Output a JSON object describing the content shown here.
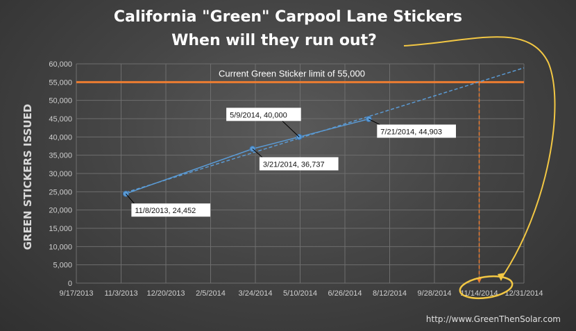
{
  "title_line1": "California \"Green\" Carpool Lane Stickers",
  "title_line2": "When will they run out?",
  "credit": "http://www.GreenThenSolar.com",
  "chart_data": {
    "type": "scatter",
    "ylabel": "GREEN STICKERS ISSUED",
    "xlabel": "",
    "x_ticks": [
      "9/17/2013",
      "11/3/2013",
      "12/20/2013",
      "2/5/2014",
      "3/24/2014",
      "5/10/2014",
      "6/26/2014",
      "8/12/2014",
      "9/28/2014",
      "11/14/2014",
      "12/31/2014"
    ],
    "y_ticks": [
      "0",
      "5,000",
      "10,000",
      "15,000",
      "20,000",
      "25,000",
      "30,000",
      "35,000",
      "40,000",
      "45,000",
      "50,000",
      "55,000",
      "60,000"
    ],
    "xlim": [
      "9/17/2013",
      "12/31/2014"
    ],
    "ylim": [
      0,
      60000
    ],
    "series": [
      {
        "points": [
          {
            "x": "11/8/2013",
            "y": 24452,
            "label": "11/8/2013, 24,452"
          },
          {
            "x": "3/21/2014",
            "y": 36737,
            "label": "3/21/2014, 36,737"
          },
          {
            "x": "5/9/2014",
            "y": 40000,
            "label": "5/9/2014, 40,000"
          },
          {
            "x": "7/21/2014",
            "y": 44903,
            "label": "7/21/2014, 44,903"
          }
        ]
      }
    ],
    "trendline": {
      "style": "dashed",
      "color": "#5b9bd5",
      "from": {
        "x": "11/8/2013",
        "y": 24800
      },
      "to": {
        "x": "12/31/2014",
        "y": 58900
      }
    },
    "reference_line": {
      "y": 55000,
      "label": "Current Green Sticker limit of 55,000",
      "color": "#ed7d31"
    },
    "projection_drop": {
      "x": "11/14/2014",
      "color": "#ed7d31"
    },
    "grid": true,
    "colors": {
      "series": "#5b9bd5",
      "limit": "#ed7d31",
      "annotation": "#f2c744"
    }
  }
}
